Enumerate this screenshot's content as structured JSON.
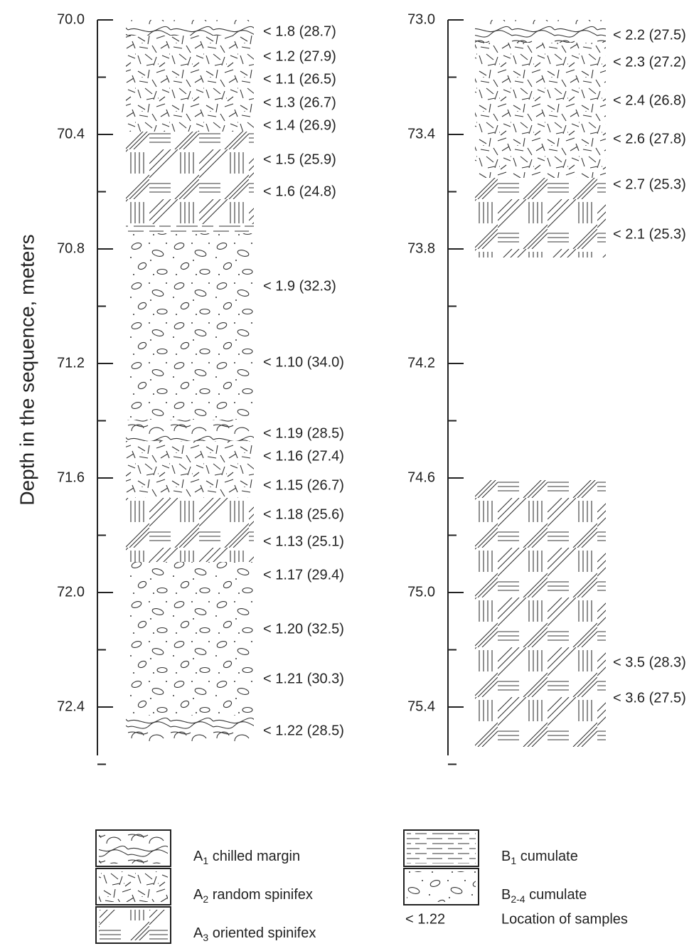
{
  "y_axis_label": "Depth in the sequence, meters",
  "columns": [
    {
      "ticks": [
        "70.0",
        "70.4",
        "70.8",
        "71.2",
        "71.6",
        "72.0",
        "72.4"
      ],
      "samples": [
        "< 1.8 (28.7)",
        "< 1.2 (27.9)",
        "< 1.1 (26.5)",
        "< 1.3 (26.7)",
        "< 1.4 (26.9)",
        "< 1.5 (25.9)",
        "< 1.6 (24.8)",
        "< 1.9 (32.3)",
        "< 1.10 (34.0)",
        "< 1.19 (28.5)",
        "< 1.16 (27.4)",
        "< 1.15 (26.7)",
        "< 1.18 (25.6)",
        "< 1.13 (25.1)",
        "< 1.17 (29.4)",
        "< 1.20 (32.5)",
        "< 1.21 (30.3)",
        "< 1.22 (28.5)"
      ]
    },
    {
      "ticks": [
        "73.0",
        "73.4",
        "73.8",
        "74.2",
        "74.6",
        "75.0",
        "75.4"
      ],
      "samples": [
        "< 2.2 (27.5)",
        "< 2.3 (27.2)",
        "< 2.4 (26.8)",
        "< 2.6 (27.8)",
        "< 2.7 (25.3)",
        "< 2.1 (25.3)",
        "< 3.5 (28.3)",
        "< 3.6 (27.5)"
      ]
    }
  ],
  "legend": [
    {
      "symbol": "A",
      "sub": "1",
      "label": "chilled margin"
    },
    {
      "symbol": "A",
      "sub": "2",
      "label": "random spinifex"
    },
    {
      "symbol": "A",
      "sub": "3",
      "label": "oriented spinifex"
    },
    {
      "symbol": "B",
      "sub": "1",
      "label": "cumulate"
    },
    {
      "symbol": "B",
      "sub": "2-4",
      "label": "cumulate"
    },
    {
      "symbol": "< 1.22",
      "label": "Location of samples"
    }
  ]
}
